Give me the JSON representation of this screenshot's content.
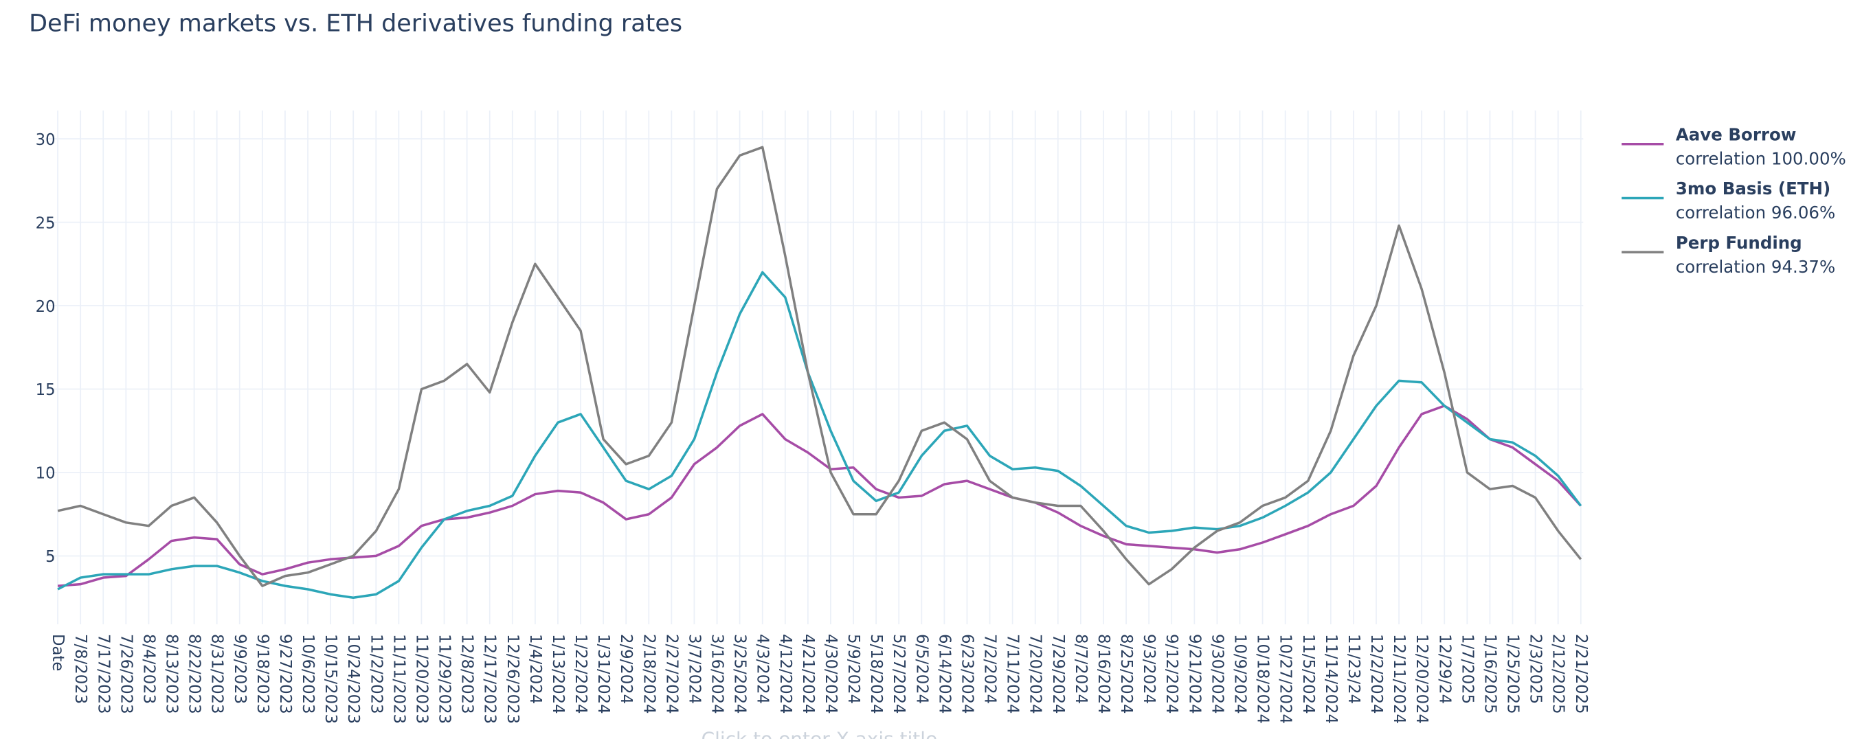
{
  "chart_data": {
    "type": "line",
    "title": "DeFi money markets vs. ETH derivatives funding rates",
    "x_label": "Click to enter X axis title",
    "categories": [
      "Date",
      "7/8/2023",
      "7/17/2023",
      "7/26/2023",
      "8/4/2023",
      "8/13/2023",
      "8/22/2023",
      "8/31/2023",
      "9/9/2023",
      "9/18/2023",
      "9/27/2023",
      "10/6/2023",
      "10/15/2023",
      "10/24/2023",
      "11/2/2023",
      "11/11/2023",
      "11/20/2023",
      "11/29/2023",
      "12/8/2023",
      "12/17/2023",
      "12/26/2023",
      "1/4/2024",
      "1/13/2024",
      "1/22/2024",
      "1/31/2024",
      "2/9/2024",
      "2/18/2024",
      "2/27/2024",
      "3/7/2024",
      "3/16/2024",
      "3/25/2024",
      "4/3/2024",
      "4/12/2024",
      "4/21/2024",
      "4/30/2024",
      "5/9/2024",
      "5/18/2024",
      "5/27/2024",
      "6/5/2024",
      "6/14/2024",
      "6/23/2024",
      "7/2/2024",
      "7/11/2024",
      "7/20/2024",
      "7/29/2024",
      "8/7/2024",
      "8/16/2024",
      "8/25/2024",
      "9/3/2024",
      "9/12/2024",
      "9/21/2024",
      "9/30/2024",
      "10/9/2024",
      "10/18/2024",
      "10/27/2024",
      "11/5/2024",
      "11/14/2024",
      "11/23/24",
      "12/2/2024",
      "12/11/2024",
      "12/20/2024",
      "12/29/24",
      "1/7/2025",
      "1/16/2025",
      "1/25/2025",
      "2/3/2025",
      "2/12/2025",
      "2/21/2025"
    ],
    "series": [
      {
        "name": "Aave Borrow",
        "legend_text": "correlation 100.00%",
        "color": "#a64ca6",
        "values": [
          3.2,
          3.3,
          3.7,
          3.8,
          4.8,
          5.9,
          6.1,
          6.0,
          4.5,
          3.9,
          4.2,
          4.6,
          4.8,
          4.9,
          5.0,
          5.6,
          6.8,
          7.2,
          7.3,
          7.6,
          8.0,
          8.7,
          8.9,
          8.8,
          8.2,
          7.2,
          7.5,
          8.5,
          10.5,
          11.5,
          12.8,
          13.5,
          12.0,
          11.2,
          10.2,
          10.3,
          9.0,
          8.5,
          8.6,
          9.3,
          9.5,
          9.0,
          8.5,
          8.2,
          7.6,
          6.8,
          6.2,
          5.7,
          5.6,
          5.5,
          5.4,
          5.2,
          5.4,
          5.8,
          6.3,
          6.8,
          7.5,
          8.0,
          9.2,
          11.5,
          13.5,
          14.0,
          13.2,
          12.0,
          11.5,
          10.5,
          9.5,
          8.0
        ]
      },
      {
        "name": "3mo Basis (ETH)",
        "legend_text": "correlation 96.06%",
        "color": "#2ca6b8",
        "values": [
          3.0,
          3.7,
          3.9,
          3.9,
          3.9,
          4.2,
          4.4,
          4.4,
          4.0,
          3.5,
          3.2,
          3.0,
          2.7,
          2.5,
          2.7,
          3.5,
          5.5,
          7.2,
          7.7,
          8.0,
          8.6,
          11.0,
          13.0,
          13.5,
          11.5,
          9.5,
          9.0,
          9.8,
          12.0,
          16.0,
          19.5,
          22.0,
          20.5,
          16.0,
          12.5,
          9.5,
          8.3,
          8.8,
          11.0,
          12.5,
          12.8,
          11.0,
          10.2,
          10.3,
          10.1,
          9.2,
          8.0,
          6.8,
          6.4,
          6.5,
          6.7,
          6.6,
          6.8,
          7.3,
          8.0,
          8.8,
          10.0,
          12.0,
          14.0,
          15.5,
          15.4,
          14.0,
          13.0,
          12.0,
          11.8,
          11.0,
          9.8,
          8.0
        ]
      },
      {
        "name": "Perp Funding",
        "legend_text": "correlation 94.37%",
        "color": "#808080",
        "values": [
          7.7,
          8.0,
          7.5,
          7.0,
          6.8,
          8.0,
          8.5,
          7.0,
          5.0,
          3.2,
          3.8,
          4.0,
          4.5,
          5.0,
          6.5,
          9.0,
          15.0,
          15.5,
          16.5,
          14.8,
          19.0,
          22.5,
          20.5,
          18.5,
          12.0,
          10.5,
          11.0,
          13.0,
          20.0,
          27.0,
          29.0,
          29.5,
          23.0,
          16.0,
          10.0,
          7.5,
          7.5,
          9.5,
          12.5,
          13.0,
          12.0,
          9.5,
          8.5,
          8.2,
          8.0,
          8.0,
          6.5,
          4.8,
          3.3,
          4.2,
          5.5,
          6.5,
          7.0,
          8.0,
          8.5,
          9.5,
          12.5,
          17.0,
          20.0,
          24.8,
          21.0,
          16.0,
          10.0,
          9.0,
          9.2,
          8.5,
          6.5,
          4.8
        ]
      }
    ],
    "ylim": [
      0.9,
      31.7
    ],
    "yticks": [
      5,
      10,
      15,
      20,
      25,
      30
    ],
    "grid": true,
    "legend": "right"
  }
}
